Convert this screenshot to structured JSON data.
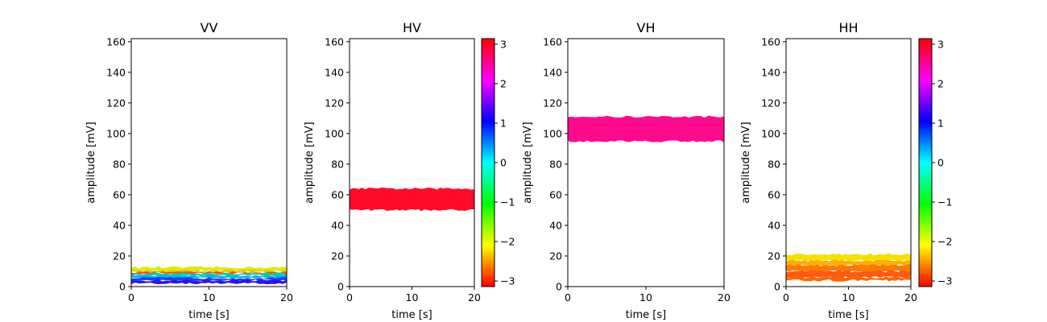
{
  "chart_data": [
    {
      "type": "scatter",
      "title": "VV",
      "xlabel": "time [s]",
      "ylabel": "amplitude [mV]",
      "xlim": [
        0,
        20
      ],
      "ylim": [
        0,
        162
      ],
      "xticks": [
        "0",
        "10",
        "20"
      ],
      "yticks": [
        "0",
        "20",
        "40",
        "60",
        "80",
        "100",
        "120",
        "140",
        "160"
      ],
      "colorbar": false,
      "bands": [
        {
          "color": "#d4f000",
          "y_range": [
            10.5,
            12.5
          ]
        },
        {
          "color": "#f0c000",
          "y_range": [
            9.5,
            10.5
          ]
        },
        {
          "color": "#ff5000",
          "y_range": [
            8.6,
            9.4
          ]
        },
        {
          "color": "#00d0a0",
          "y_range": [
            7.2,
            8.6
          ]
        },
        {
          "color": "#00b0ff",
          "y_range": [
            5.6,
            7.2
          ]
        },
        {
          "color": "#1840ff",
          "y_range": [
            4.0,
            5.6
          ]
        },
        {
          "color": "#3010f0",
          "y_range": [
            2.0,
            4.0
          ]
        }
      ]
    },
    {
      "type": "scatter",
      "title": "HV",
      "xlabel": "time [s]",
      "ylabel": "amplitude [mV]",
      "xlim": [
        0,
        20
      ],
      "ylim": [
        0,
        162
      ],
      "xticks": [
        "0",
        "10",
        "20"
      ],
      "yticks": [
        "0",
        "20",
        "40",
        "60",
        "80",
        "100",
        "120",
        "140",
        "160"
      ],
      "colorbar": true,
      "colorbar_ticks": [
        "3",
        "2",
        "1",
        "0",
        "−1",
        "−2",
        "−3"
      ],
      "bands": [
        {
          "color": "#ff0a28",
          "y_range": [
            50,
            64
          ]
        }
      ]
    },
    {
      "type": "scatter",
      "title": "VH",
      "xlabel": "time [s]",
      "ylabel": "amplitude [mV]",
      "xlim": [
        0,
        20
      ],
      "ylim": [
        0,
        162
      ],
      "xticks": [
        "0",
        "10",
        "20"
      ],
      "yticks": [
        "0",
        "20",
        "40",
        "60",
        "80",
        "100",
        "120",
        "140",
        "160"
      ],
      "colorbar": false,
      "bands": [
        {
          "color": "#ff0a8c",
          "y_range": [
            95,
            111
          ]
        }
      ]
    },
    {
      "type": "scatter",
      "title": "HH",
      "xlabel": "time [s]",
      "ylabel": "amplitude [mV]",
      "xlim": [
        0,
        20
      ],
      "ylim": [
        0,
        162
      ],
      "xticks": [
        "0",
        "10",
        "20"
      ],
      "yticks": [
        "0",
        "20",
        "40",
        "60",
        "80",
        "100",
        "120",
        "140",
        "160"
      ],
      "colorbar": true,
      "colorbar_ticks": [
        "3",
        "2",
        "1",
        "0",
        "−1",
        "−2",
        "−3"
      ],
      "bands": [
        {
          "color": "#f7e000",
          "y_range": [
            17,
            21
          ]
        },
        {
          "color": "#ffb000",
          "y_range": [
            14,
            17
          ]
        },
        {
          "color": "#ff7800",
          "y_range": [
            10,
            14
          ]
        },
        {
          "color": "#ff5a10",
          "y_range": [
            6,
            10
          ]
        },
        {
          "color": "#ff6400",
          "y_range": [
            4,
            6
          ]
        }
      ]
    }
  ]
}
